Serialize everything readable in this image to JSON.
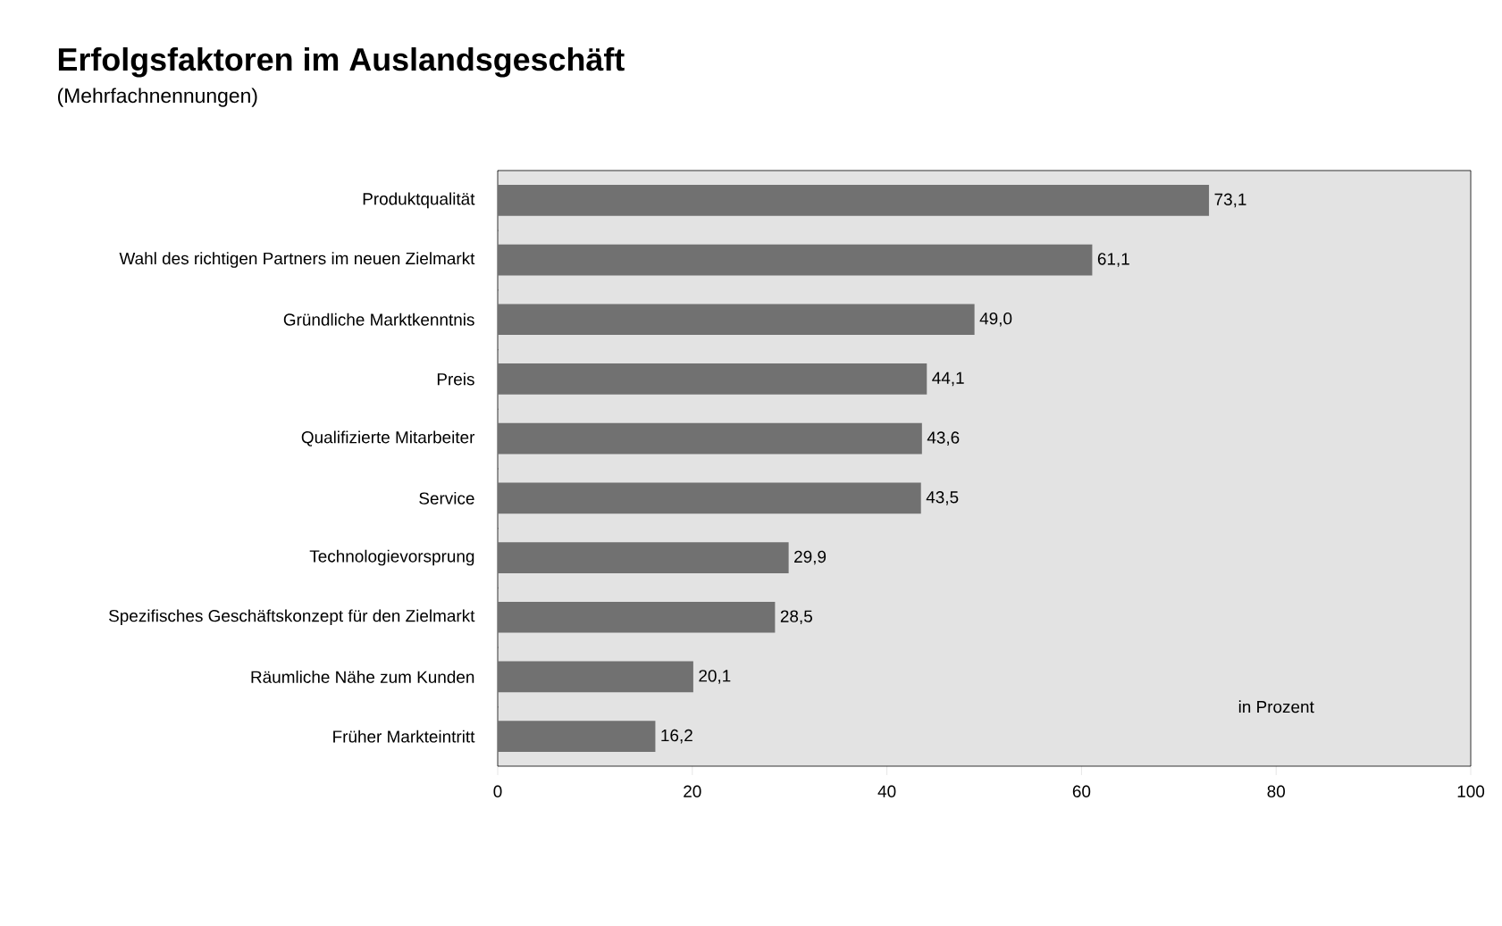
{
  "chart_data": {
    "type": "bar",
    "orientation": "horizontal",
    "title": "Erfolgsfaktoren im Auslandsgeschäft",
    "subtitle": "(Mehrfachnennungen)",
    "categories": [
      "Produktqualität",
      "Wahl des richtigen Partners im neuen Zielmarkt",
      "Gründliche Marktkenntnis",
      "Preis",
      "Qualifizierte Mitarbeiter",
      "Service",
      "Technologievorsprung",
      "Spezifisches Geschäftskonzept für den Zielmarkt",
      "Räumliche Nähe zum Kunden",
      "Früher Markteintritt"
    ],
    "values": [
      73.1,
      61.1,
      49.0,
      44.1,
      43.6,
      43.5,
      29.9,
      28.5,
      20.1,
      16.2
    ],
    "value_labels": [
      "73,1",
      "61,1",
      "49,0",
      "44,1",
      "43,6",
      "43,5",
      "29,9",
      "28,5",
      "20,1",
      "16,2"
    ],
    "color": "#717171",
    "xlim": [
      0,
      100
    ],
    "xticks": [
      0,
      20,
      40,
      60,
      80,
      100
    ],
    "annotations": [
      "in Prozent"
    ]
  }
}
